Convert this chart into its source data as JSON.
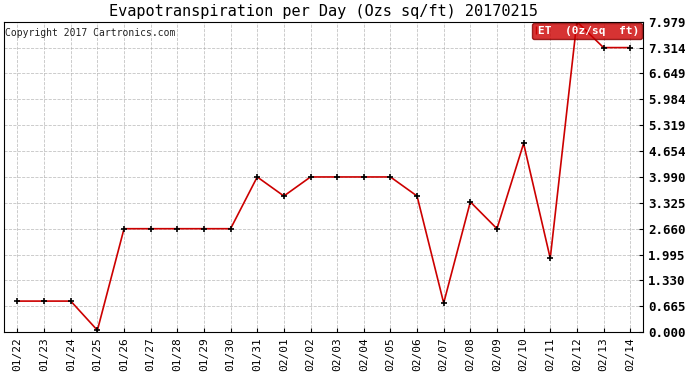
{
  "title": "Evapotranspiration per Day (Ozs sq/ft) 20170215",
  "copyright": "Copyright 2017 Cartronics.com",
  "legend_label": "ET  (0z/sq  ft)",
  "x_labels": [
    "01/22",
    "01/23",
    "01/24",
    "01/25",
    "01/26",
    "01/27",
    "01/28",
    "01/29",
    "01/30",
    "01/31",
    "02/01",
    "02/02",
    "02/03",
    "02/04",
    "02/05",
    "02/06",
    "02/07",
    "02/08",
    "02/09",
    "02/10",
    "02/11",
    "02/12",
    "02/13",
    "02/14"
  ],
  "y_values": [
    0.8,
    0.8,
    0.8,
    0.05,
    2.66,
    2.66,
    2.66,
    2.66,
    2.66,
    3.99,
    3.5,
    3.99,
    3.99,
    3.99,
    3.99,
    3.5,
    0.75,
    3.35,
    2.66,
    4.85,
    1.9,
    7.979,
    7.314,
    7.314
  ],
  "y_ticks": [
    0.0,
    0.665,
    1.33,
    1.995,
    2.66,
    3.325,
    3.99,
    4.654,
    5.319,
    5.984,
    6.649,
    7.314,
    7.979
  ],
  "y_tick_labels": [
    "0.000",
    "0.665",
    "1.330",
    "1.995",
    "2.660",
    "3.325",
    "3.990",
    "4.654",
    "5.319",
    "5.984",
    "6.649",
    "7.314",
    "7.979"
  ],
  "ylim": [
    0.0,
    7.979
  ],
  "line_color": "#cc0000",
  "marker_color": "#000000",
  "background_color": "#ffffff",
  "grid_color": "#aaaaaa",
  "legend_bg": "#cc0000",
  "legend_text_color": "#ffffff",
  "title_fontsize": 11,
  "copyright_fontsize": 7,
  "tick_fontsize": 8,
  "ytick_fontsize": 9,
  "legend_fontsize": 8
}
